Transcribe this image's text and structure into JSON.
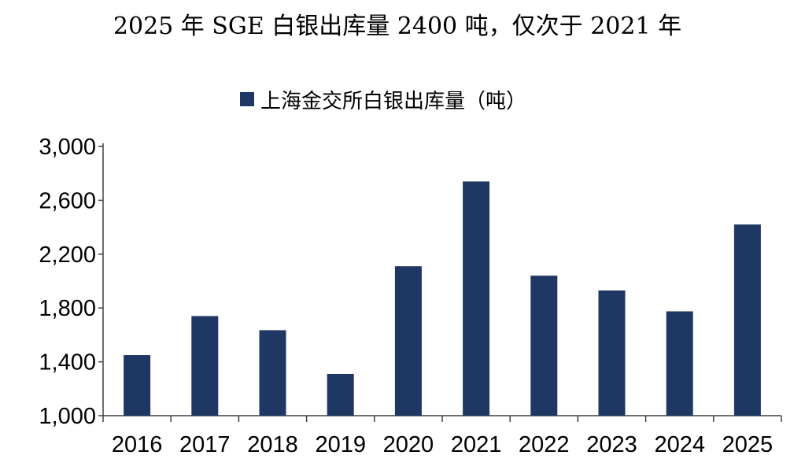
{
  "chart_data": {
    "type": "bar",
    "title": "2025 年 SGE 白银出库量 2400 吨，仅次于 2021 年",
    "categories": [
      "2016",
      "2017",
      "2018",
      "2019",
      "2020",
      "2021",
      "2022",
      "2023",
      "2024",
      "2025"
    ],
    "series": [
      {
        "name": "上海金交所白银出库量（吨）",
        "values": [
          1450,
          1740,
          1635,
          1310,
          2110,
          2740,
          2040,
          1930,
          1775,
          2420
        ]
      }
    ],
    "ylim": [
      1000,
      3000
    ],
    "yticks": [
      1000,
      1400,
      1800,
      2200,
      2600,
      3000
    ],
    "ytick_labels": [
      "1,000",
      "1,400",
      "1,800",
      "2,200",
      "2,600",
      "3,000"
    ],
    "legend_position": "top-center",
    "grid": false,
    "colors": {
      "bar": "#1f3763",
      "axis": "#404040"
    }
  }
}
